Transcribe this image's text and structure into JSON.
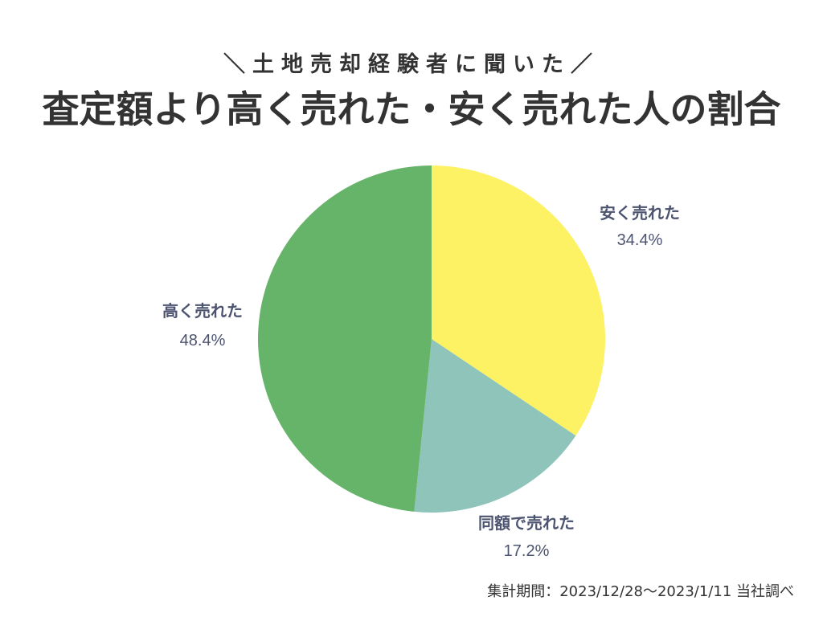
{
  "header": {
    "subtitle": "＼土地売却経験者に聞いた／",
    "title": "査定額より高く売れた・安く売れた人の割合"
  },
  "chart_data": {
    "type": "pie",
    "slices": [
      {
        "label": "安く売れた",
        "value": 34.4,
        "value_text": "34.4%",
        "color": "#fdf264"
      },
      {
        "label": "同額で売れた",
        "value": 17.2,
        "value_text": "17.2%",
        "color": "#8fc4bb"
      },
      {
        "label": "高く売れた",
        "value": 48.4,
        "value_text": "48.4%",
        "color": "#66b469"
      }
    ],
    "start_angle": "12 o'clock",
    "direction": "clockwise"
  },
  "footnote": "集計期間：2023/12/28〜2023/1/11 当社調べ"
}
